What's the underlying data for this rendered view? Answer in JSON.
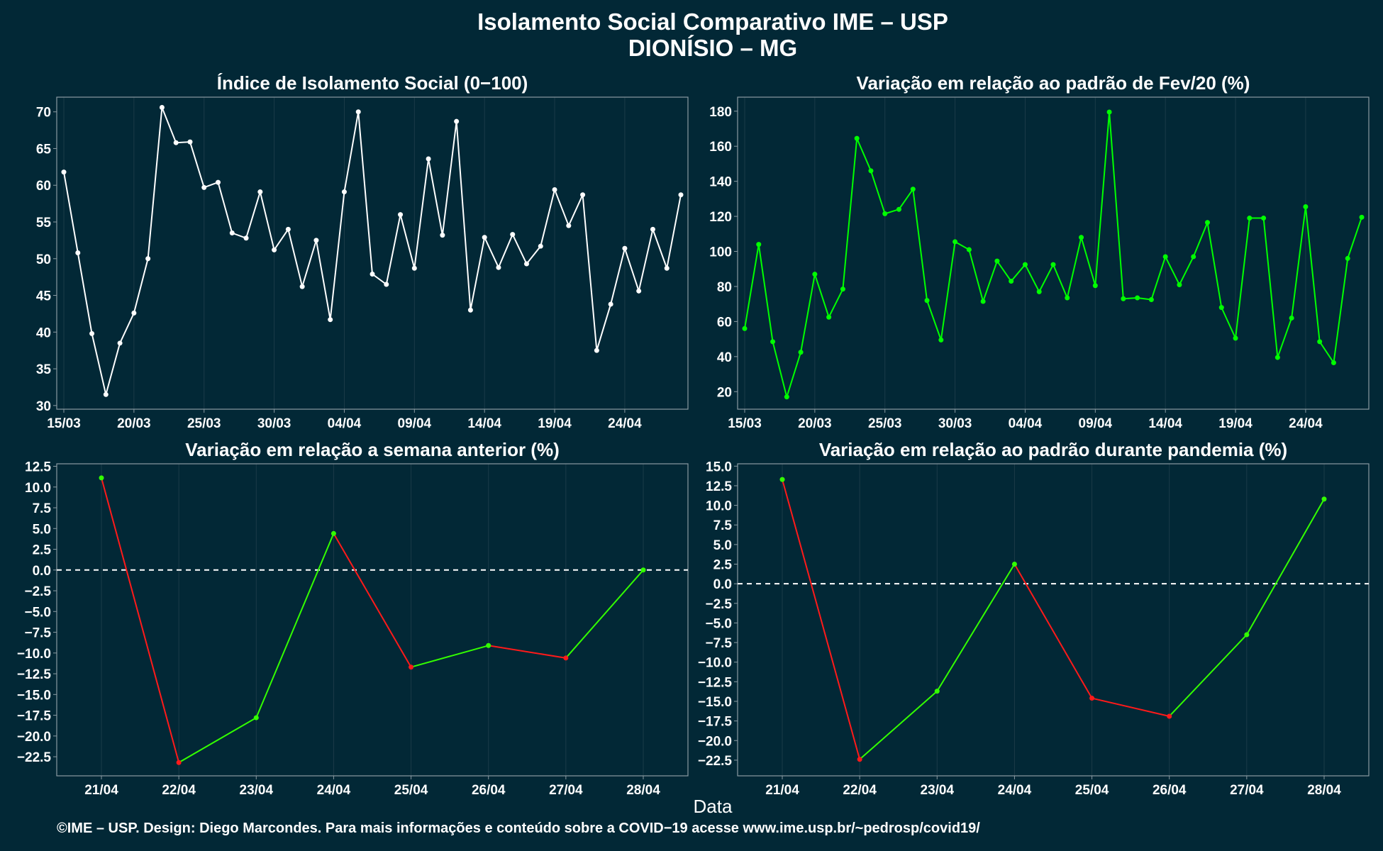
{
  "title": {
    "line1": "Isolamento Social Comparativo IME – USP",
    "line2": "DIONÍSIO – MG"
  },
  "x_axis_label": "Data",
  "footer": "©IME – USP. Design: Diego Marcondes. Para mais informações e conteúdo sobre a COVID−19 acesse www.ime.usp.br/~pedrosp/covid19/",
  "colors": {
    "background": "#022836",
    "panel_border": "#8a9aa2",
    "grid": "#1b3b48",
    "line_white": "#ffffff",
    "line_green": "#00ff00",
    "increase": "#33ff00",
    "decrease": "#ff1a1a",
    "zero_line": "#ffffff"
  },
  "chart_data": [
    {
      "type": "line",
      "title": "Índice de Isolamento Social (0−100)",
      "color": "white",
      "x": [
        "15/03",
        "16/03",
        "17/03",
        "18/03",
        "19/03",
        "20/03",
        "21/03",
        "22/03",
        "23/03",
        "24/03",
        "25/03",
        "26/03",
        "27/03",
        "28/03",
        "29/03",
        "30/03",
        "31/03",
        "01/04",
        "02/04",
        "03/04",
        "04/04",
        "05/04",
        "06/04",
        "07/04",
        "08/04",
        "09/04",
        "10/04",
        "11/04",
        "12/04",
        "13/04",
        "14/04",
        "15/04",
        "16/04",
        "17/04",
        "18/04",
        "19/04",
        "20/04",
        "21/04",
        "22/04",
        "23/04",
        "24/04",
        "25/04",
        "26/04",
        "27/04",
        "28/04"
      ],
      "values": [
        61.8,
        50.8,
        39.8,
        31.5,
        38.5,
        42.6,
        50.0,
        70.6,
        65.8,
        65.9,
        59.7,
        60.4,
        53.5,
        52.8,
        59.1,
        51.2,
        54.0,
        46.2,
        52.5,
        41.7,
        59.1,
        70.0,
        47.9,
        46.5,
        56.0,
        48.7,
        63.6,
        53.2,
        68.7,
        43.0,
        52.9,
        48.8,
        53.3,
        49.3,
        51.7,
        59.4,
        54.5,
        58.7,
        37.5,
        43.8,
        51.4,
        45.6,
        54.0,
        48.7,
        58.7
      ],
      "x_ticks": [
        "15/03",
        "20/03",
        "25/03",
        "30/03",
        "04/04",
        "09/04",
        "14/04",
        "19/04",
        "24/04"
      ],
      "y_ticks": [
        "30",
        "35",
        "40",
        "45",
        "50",
        "55",
        "60",
        "65",
        "70"
      ],
      "ylim": [
        29.5,
        72
      ]
    },
    {
      "type": "line",
      "title": "Variação em relação ao padrão de Fev/20 (%)",
      "color": "green",
      "x": [
        "15/03",
        "16/03",
        "17/03",
        "18/03",
        "19/03",
        "20/03",
        "21/03",
        "22/03",
        "23/03",
        "24/03",
        "25/03",
        "26/03",
        "27/03",
        "28/03",
        "29/03",
        "30/03",
        "31/03",
        "01/04",
        "02/04",
        "03/04",
        "04/04",
        "05/04",
        "06/04",
        "07/04",
        "08/04",
        "09/04",
        "10/04",
        "11/04",
        "12/04",
        "13/04",
        "14/04",
        "15/04",
        "16/04",
        "17/04",
        "18/04",
        "19/04",
        "20/04",
        "21/04",
        "22/04",
        "23/04",
        "24/04",
        "25/04",
        "26/04",
        "27/04",
        "28/04"
      ],
      "values": [
        56,
        104,
        48.5,
        17,
        42.5,
        87,
        62.5,
        78.5,
        164.5,
        146,
        121.5,
        124,
        135.5,
        72,
        49.5,
        105.5,
        101,
        71.5,
        94.5,
        83,
        92.5,
        77,
        92.5,
        73.5,
        108,
        80.5,
        179.5,
        73,
        73.5,
        72.5,
        97,
        81,
        97,
        116.5,
        68,
        50.5,
        119,
        119,
        39.5,
        62,
        125.5,
        48.5,
        36.5,
        96,
        119.5
      ],
      "x_ticks": [
        "15/03",
        "20/03",
        "25/03",
        "30/03",
        "04/04",
        "09/04",
        "14/04",
        "19/04",
        "24/04"
      ],
      "y_ticks": [
        "20",
        "40",
        "60",
        "80",
        "100",
        "120",
        "140",
        "160",
        "180"
      ],
      "ylim": [
        10,
        188
      ]
    },
    {
      "type": "line",
      "title": "Variação em relação a semana anterior (%)",
      "color": "green-red by direction",
      "categories": [
        "21/04",
        "22/04",
        "23/04",
        "24/04",
        "25/04",
        "26/04",
        "27/04",
        "28/04"
      ],
      "values": [
        11.1,
        -23.2,
        -17.8,
        4.4,
        -11.7,
        -9.1,
        -10.6,
        0.0
      ],
      "y_ticks": [
        "12.5",
        "10.0",
        "7.5",
        "5.0",
        "2.5",
        "0.0",
        "−2.5",
        "−5.0",
        "−7.5",
        "−10.0",
        "−12.5",
        "−15.0",
        "−17.5",
        "−20.0",
        "−22.5"
      ],
      "ylim": [
        -24.8,
        12.8
      ],
      "reference_line": 0
    },
    {
      "type": "line",
      "title": "Variação em relação ao padrão durante pandemia (%)",
      "color": "green-red by direction",
      "categories": [
        "21/04",
        "22/04",
        "23/04",
        "24/04",
        "25/04",
        "26/04",
        "27/04",
        "28/04"
      ],
      "values": [
        13.3,
        -22.4,
        -13.7,
        2.5,
        -14.6,
        -16.9,
        -6.5,
        10.8
      ],
      "y_ticks": [
        "15.0",
        "12.5",
        "10.0",
        "7.5",
        "5.0",
        "2.5",
        "0.0",
        "−2.5",
        "−5.0",
        "−7.5",
        "−10.0",
        "−12.5",
        "−15.0",
        "−17.5",
        "−20.0",
        "−22.5"
      ],
      "ylim": [
        -24.5,
        15.3
      ],
      "reference_line": 0
    }
  ]
}
